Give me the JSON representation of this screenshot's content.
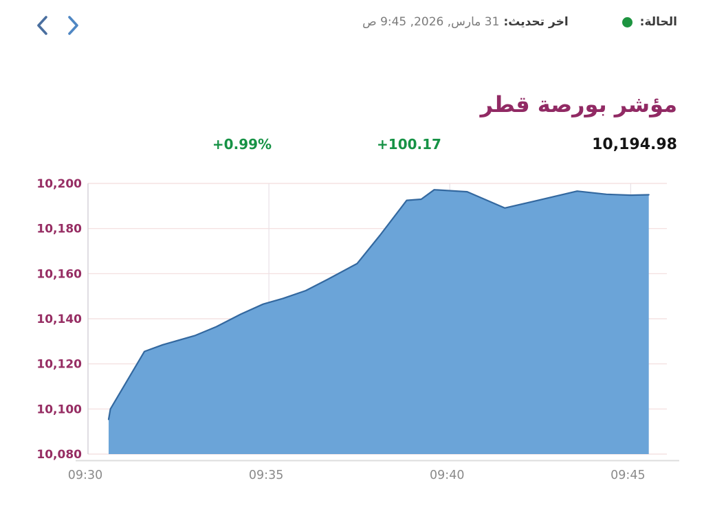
{
  "top_bar": {
    "nav": {
      "prev_label": "previous",
      "next_label": "next",
      "prev_color": "#4a6f9f",
      "next_color": "#4f87c3"
    },
    "status": {
      "label": "الحالة:",
      "dot_color": "#1d9440",
      "last_update_label": "اخر تحديث:",
      "last_update_value": "31 مارس, 2026, 9:45 ص"
    }
  },
  "header": {
    "title": "مؤشر بورصة قطر",
    "title_color": "#912a64"
  },
  "stats": {
    "percent_change": "+0.99%",
    "point_change": "+100.17",
    "value": "10,194.98",
    "positive_color": "#169245"
  },
  "chart_data": {
    "type": "area",
    "title": "مؤشر بورصة قطر",
    "series_name": "Qatar Exchange Index",
    "x_ticks": [
      "09:30",
      "09:35",
      "09:40",
      "09:45"
    ],
    "x_tick_minutes": [
      0,
      5,
      10,
      15
    ],
    "xlim_minutes": [
      0,
      16
    ],
    "y_ticks": [
      10200,
      10180,
      10160,
      10140,
      10120,
      10100,
      10080
    ],
    "y_tick_labels": [
      "10,200",
      "10,180",
      "10,160",
      "10,140",
      "10,120",
      "10,100",
      "10,080"
    ],
    "ylim": [
      10080,
      10200
    ],
    "grid": true,
    "points_minutes_value": [
      [
        0.57,
        10095.4
      ],
      [
        0.62,
        10100.0
      ],
      [
        1.56,
        10125.5
      ],
      [
        2.07,
        10128.5
      ],
      [
        2.95,
        10132.5
      ],
      [
        3.55,
        10136.5
      ],
      [
        4.22,
        10142.0
      ],
      [
        4.84,
        10146.5
      ],
      [
        5.39,
        10149.0
      ],
      [
        6.02,
        10152.5
      ],
      [
        6.63,
        10157.5
      ],
      [
        7.44,
        10164.5
      ],
      [
        8.07,
        10177.0
      ],
      [
        8.81,
        10192.5
      ],
      [
        9.21,
        10193.0
      ],
      [
        9.57,
        10197.2
      ],
      [
        10.48,
        10196.3
      ],
      [
        11.52,
        10189.1
      ],
      [
        12.44,
        10192.5
      ],
      [
        13.52,
        10196.6
      ],
      [
        14.33,
        10195.2
      ],
      [
        15.0,
        10194.8
      ],
      [
        15.5,
        10194.98
      ]
    ],
    "fill_color": "#6ba4d8",
    "line_color": "#33689f",
    "gridline_color_h": "#f2dcdc",
    "gridline_color_v": "#e9e1e6",
    "axis_line_color": "#d5d2d8",
    "bottom_line_color": "#dcdcdc",
    "axis_label_color_y": "#962d63",
    "axis_label_color_x": "#8a8a8a",
    "legend": "off"
  }
}
